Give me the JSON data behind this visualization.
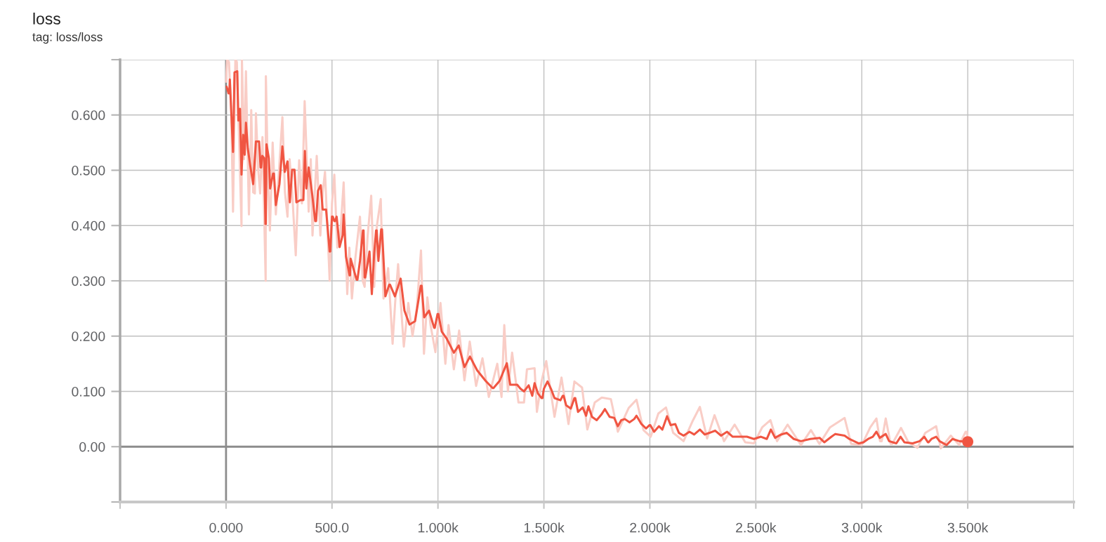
{
  "chart_data": {
    "type": "line",
    "title": "loss",
    "subtitle": "tag: loss/loss",
    "xlim": [
      -500,
      4000
    ],
    "xticks": [
      {
        "value": -500,
        "label": null
      },
      {
        "value": 0,
        "label": "0.000"
      },
      {
        "value": 500,
        "label": "500.0"
      },
      {
        "value": 1000,
        "label": "1.000k"
      },
      {
        "value": 1500,
        "label": "1.500k"
      },
      {
        "value": 2000,
        "label": "2.000k"
      },
      {
        "value": 2500,
        "label": "2.500k"
      },
      {
        "value": 3000,
        "label": "3.000k"
      },
      {
        "value": 3500,
        "label": "3.500k"
      },
      {
        "value": 4000,
        "label": null
      }
    ],
    "ylim": [
      -0.1,
      0.7
    ],
    "yticks": [
      {
        "value": -0.1,
        "label": null
      },
      {
        "value": 0,
        "label": "0.00"
      },
      {
        "value": 0.1,
        "label": "0.100"
      },
      {
        "value": 0.2,
        "label": "0.200"
      },
      {
        "value": 0.3,
        "label": "0.300"
      },
      {
        "value": 0.4,
        "label": "0.400"
      },
      {
        "value": 0.5,
        "label": "0.500"
      },
      {
        "value": 0.6,
        "label": "0.600"
      },
      {
        "value": 0.7,
        "label": null
      }
    ],
    "grid": true,
    "series": [
      {
        "color": "#f9cdc6",
        "x": [
          0,
          5,
          14,
          25,
          33,
          44,
          51,
          62,
          73,
          75,
          85,
          94,
          108,
          119,
          128,
          136,
          141,
          152,
          161,
          172,
          187,
          188,
          197,
          207,
          220,
          235,
          250,
          266,
          278,
          290,
          300,
          312,
          329,
          345,
          358,
          371,
          390,
          400,
          408,
          428,
          445,
          456,
          467,
          489,
          500,
          511,
          525,
          539,
          555,
          572,
          582,
          594,
          610,
          632,
          645,
          654,
          668,
          685,
          699,
          712,
          730,
          743,
          765,
          786,
          798,
          812,
          839,
          860,
          880,
          900,
          920,
          934,
          950,
          965,
          988,
          1012,
          1035,
          1050,
          1075,
          1100,
          1125,
          1150,
          1180,
          1210,
          1240,
          1280,
          1300,
          1313,
          1330,
          1350,
          1380,
          1406,
          1420,
          1456,
          1467,
          1490,
          1511,
          1550,
          1583,
          1616,
          1644,
          1680,
          1705,
          1740,
          1773,
          1816,
          1849,
          1900,
          1937,
          1970,
          2004,
          2040,
          2076,
          2110,
          2159,
          2200,
          2236,
          2270,
          2305,
          2350,
          2400,
          2450,
          2491,
          2530,
          2569,
          2600,
          2650,
          2713,
          2760,
          2800,
          2850,
          2919,
          2950,
          3000,
          3040,
          3069,
          3086,
          3094,
          3113,
          3136,
          3144,
          3185,
          3220,
          3262,
          3300,
          3351,
          3373,
          3420,
          3460,
          3490,
          3496,
          3500
        ],
        "values": [
          0.66,
          0.7,
          0.696,
          0.6,
          0.425,
          0.7,
          0.696,
          0.55,
          0.399,
          0.7,
          0.52,
          0.679,
          0.42,
          0.609,
          0.46,
          0.458,
          0.603,
          0.5,
          0.458,
          0.56,
          0.3,
          0.67,
          0.5,
          0.391,
          0.55,
          0.42,
          0.5,
          0.596,
          0.46,
          0.416,
          0.52,
          0.46,
          0.346,
          0.518,
          0.44,
          0.625,
          0.425,
          0.52,
          0.382,
          0.526,
          0.382,
          0.46,
          0.497,
          0.3,
          0.44,
          0.492,
          0.36,
          0.382,
          0.478,
          0.276,
          0.36,
          0.268,
          0.34,
          0.416,
          0.3,
          0.289,
          0.38,
          0.454,
          0.289,
          0.4,
          0.448,
          0.268,
          0.323,
          0.186,
          0.26,
          0.33,
          0.181,
          0.26,
          0.2,
          0.25,
          0.355,
          0.168,
          0.27,
          0.22,
          0.171,
          0.26,
          0.15,
          0.22,
          0.14,
          0.21,
          0.12,
          0.19,
          0.11,
          0.16,
          0.09,
          0.15,
          0.09,
          0.22,
          0.1,
          0.17,
          0.08,
          0.08,
          0.14,
          0.142,
          0.063,
          0.12,
          0.155,
          0.054,
          0.125,
          0.041,
          0.118,
          0.107,
          0.031,
          0.08,
          0.089,
          0.086,
          0.027,
          0.07,
          0.085,
          0.03,
          0.018,
          0.06,
          0.071,
          0.025,
          0.01,
          0.045,
          0.072,
          0.015,
          0.057,
          0.01,
          0.04,
          0.008,
          0.006,
          0.035,
          0.048,
          0.01,
          0.04,
          0.003,
          0.03,
          0.005,
          0.035,
          0.052,
          0.005,
          0.003,
          0.035,
          0.051,
          0.01,
          0.01,
          0.051,
          0.005,
          0.005,
          0.034,
          0.008,
          -0.002,
          0.025,
          0.037,
          -0.003,
          0.02,
          0.003,
          0.027,
          0.027,
          0.01
        ]
      },
      {
        "color": "#f05542",
        "x": [
          3,
          12,
          15,
          18,
          33,
          40,
          53,
          58,
          66,
          73,
          81,
          88,
          94,
          103,
          114,
          128,
          141,
          156,
          163,
          166,
          171,
          180,
          186,
          188,
          191,
          202,
          208,
          222,
          226,
          235,
          252,
          266,
          277,
          290,
          301,
          312,
          323,
          332,
          351,
          365,
          372,
          379,
          390,
          406,
          421,
          425,
          434,
          447,
          456,
          472,
          489,
          492,
          500,
          504,
          511,
          514,
          522,
          536,
          550,
          555,
          566,
          583,
          585,
          588,
          616,
          620,
          632,
          646,
          649,
          654,
          657,
          668,
          677,
          688,
          699,
          708,
          711,
          719,
          732,
          736,
          752,
          770,
          774,
          797,
          824,
          842,
          866,
          892,
          919,
          923,
          935,
          958,
          982,
          985,
          998,
          1002,
          1018,
          1042,
          1075,
          1098,
          1125,
          1151,
          1185,
          1225,
          1258,
          1262,
          1291,
          1325,
          1341,
          1374,
          1389,
          1406,
          1428,
          1445,
          1456,
          1472,
          1489,
          1493,
          1500,
          1517,
          1533,
          1550,
          1578,
          1589,
          1593,
          1605,
          1627,
          1644,
          1648,
          1661,
          1683,
          1699,
          1710,
          1727,
          1749,
          1771,
          1788,
          1810,
          1832,
          1849,
          1865,
          1882,
          1904,
          1926,
          1937,
          1960,
          1982,
          1998,
          2002,
          2020,
          2043,
          2059,
          2081,
          2098,
          2120,
          2137,
          2159,
          2187,
          2209,
          2236,
          2259,
          2281,
          2308,
          2336,
          2364,
          2391,
          2425,
          2458,
          2491,
          2524,
          2552,
          2571,
          2591,
          2619,
          2646,
          2679,
          2713,
          2757,
          2801,
          2823,
          2857,
          2875,
          2919,
          2941,
          2986,
          3008,
          3030,
          3052,
          3069,
          3085,
          3113,
          3129,
          3163,
          3183,
          3201,
          3240,
          3273,
          3295,
          3312,
          3315,
          3329,
          3351,
          3367,
          3400,
          3428,
          3461,
          3500
        ],
        "values": [
          0.651,
          0.639,
          0.639,
          0.664,
          0.533,
          0.677,
          0.679,
          0.59,
          0.611,
          0.492,
          0.564,
          0.528,
          0.586,
          0.539,
          0.509,
          0.475,
          0.552,
          0.552,
          0.505,
          0.505,
          0.526,
          0.522,
          0.403,
          0.403,
          0.547,
          0.522,
          0.467,
          0.494,
          0.494,
          0.437,
          0.475,
          0.543,
          0.497,
          0.516,
          0.442,
          0.501,
          0.501,
          0.442,
          0.446,
          0.446,
          0.535,
          0.467,
          0.505,
          0.458,
          0.408,
          0.408,
          0.463,
          0.473,
          0.429,
          0.429,
          0.353,
          0.353,
          0.416,
          0.416,
          0.408,
          0.408,
          0.416,
          0.361,
          0.382,
          0.42,
          0.344,
          0.31,
          0.31,
          0.34,
          0.302,
          0.302,
          0.336,
          0.391,
          0.391,
          0.306,
          0.306,
          0.331,
          0.353,
          0.276,
          0.349,
          0.391,
          0.391,
          0.336,
          0.393,
          0.393,
          0.272,
          0.293,
          0.293,
          0.272,
          0.304,
          0.246,
          0.221,
          0.227,
          0.291,
          0.291,
          0.234,
          0.246,
          0.215,
          0.215,
          0.24,
          0.24,
          0.208,
          0.195,
          0.17,
          0.183,
          0.144,
          0.163,
          0.138,
          0.119,
          0.106,
          0.106,
          0.119,
          0.151,
          0.112,
          0.112,
          0.105,
          0.1,
          0.111,
          0.092,
          0.115,
          0.096,
          0.088,
          0.088,
          0.105,
          0.118,
          0.105,
          0.088,
          0.084,
          0.092,
          0.092,
          0.075,
          0.069,
          0.088,
          0.088,
          0.063,
          0.071,
          0.056,
          0.073,
          0.054,
          0.048,
          0.058,
          0.068,
          0.054,
          0.052,
          0.037,
          0.048,
          0.05,
          0.044,
          0.05,
          0.056,
          0.041,
          0.033,
          0.039,
          0.039,
          0.027,
          0.037,
          0.031,
          0.055,
          0.039,
          0.041,
          0.025,
          0.02,
          0.027,
          0.022,
          0.031,
          0.022,
          0.025,
          0.029,
          0.02,
          0.027,
          0.018,
          0.018,
          0.018,
          0.014,
          0.018,
          0.014,
          0.031,
          0.016,
          0.022,
          0.025,
          0.014,
          0.01,
          0.014,
          0.016,
          0.008,
          0.018,
          0.023,
          0.02,
          0.014,
          0.006,
          0.008,
          0.014,
          0.018,
          0.027,
          0.016,
          0.023,
          0.01,
          0.006,
          0.018,
          0.008,
          0.006,
          0.01,
          0.018,
          0.008,
          0.008,
          0.014,
          0.018,
          0.01,
          0.003,
          0.014,
          0.01,
          0.009
        ]
      },
      {
        "type": "scatter",
        "color": "#f05542",
        "marker": "circle",
        "x": [
          3500
        ],
        "values": [
          0.009
        ]
      }
    ]
  }
}
